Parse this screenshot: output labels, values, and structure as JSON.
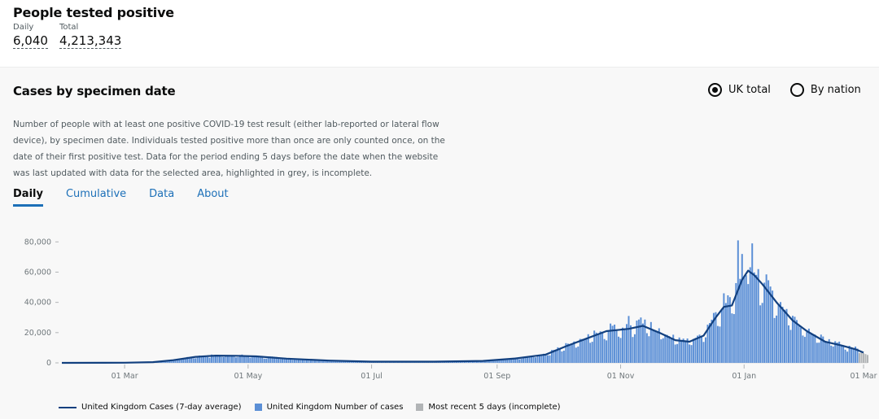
{
  "headline": {
    "title": "People tested positive",
    "daily_label": "Daily",
    "daily_value": "6,040",
    "total_label": "Total",
    "total_value": "4,213,343"
  },
  "card": {
    "title": "Cases by specimen date",
    "radio_uk": "UK total",
    "radio_nation": "By nation",
    "selected": "UK total",
    "description": "Number of people with at least one positive COVID-19 test result (either lab-reported or lateral flow device), by specimen date. Individuals tested positive more than once are only counted once, on the date of their first positive test. Data for the period ending 5 days before the date when the website was last updated with data for the selected area, highlighted in grey, is incomplete.",
    "tabs": [
      "Daily",
      "Cumulative",
      "Data",
      "About"
    ],
    "active_tab": "Daily"
  },
  "colors": {
    "bar": "#5b8fd6",
    "line": "#12407f",
    "incomplete": "#b1b4b6",
    "link": "#1d70b8"
  },
  "chart_data": {
    "type": "bar",
    "ylim": [
      0,
      85000
    ],
    "y_ticks": [
      0,
      20000,
      40000,
      60000,
      80000
    ],
    "y_tick_labels": [
      "0",
      "20,000",
      "40,000",
      "60,000",
      "80,000"
    ],
    "x_range": [
      "2020-01-30",
      "2021-03-03"
    ],
    "x_ticks": [
      "2020-03-01",
      "2020-05-01",
      "2020-07-01",
      "2020-09-01",
      "2020-11-01",
      "2021-01-01",
      "2021-03-01"
    ],
    "x_tick_labels": [
      "01 Mar",
      "01 May",
      "01 Jul",
      "01 Sep",
      "01 Nov",
      "01 Jan",
      "01 Mar"
    ],
    "series": [
      {
        "name": "United Kingdom Cases (7-day average)",
        "type": "line",
        "points": [
          [
            "2020-01-30",
            0
          ],
          [
            "2020-03-01",
            100
          ],
          [
            "2020-03-15",
            500
          ],
          [
            "2020-03-25",
            1800
          ],
          [
            "2020-04-05",
            4000
          ],
          [
            "2020-04-15",
            4800
          ],
          [
            "2020-04-25",
            4700
          ],
          [
            "2020-05-05",
            4300
          ],
          [
            "2020-05-20",
            2800
          ],
          [
            "2020-06-10",
            1500
          ],
          [
            "2020-07-01",
            800
          ],
          [
            "2020-08-01",
            800
          ],
          [
            "2020-08-25",
            1300
          ],
          [
            "2020-09-10",
            2900
          ],
          [
            "2020-09-25",
            5500
          ],
          [
            "2020-10-05",
            11000
          ],
          [
            "2020-10-15",
            16000
          ],
          [
            "2020-10-25",
            21000
          ],
          [
            "2020-11-05",
            22500
          ],
          [
            "2020-11-12",
            24500
          ],
          [
            "2020-11-20",
            20000
          ],
          [
            "2020-11-28",
            15000
          ],
          [
            "2020-12-05",
            14000
          ],
          [
            "2020-12-12",
            18000
          ],
          [
            "2020-12-18",
            30000
          ],
          [
            "2020-12-22",
            37000
          ],
          [
            "2020-12-26",
            38000
          ],
          [
            "2020-12-31",
            55000
          ],
          [
            "2021-01-03",
            61000
          ],
          [
            "2021-01-06",
            58000
          ],
          [
            "2021-01-10",
            52000
          ],
          [
            "2021-01-17",
            40000
          ],
          [
            "2021-01-25",
            28000
          ],
          [
            "2021-02-01",
            21000
          ],
          [
            "2021-02-10",
            14000
          ],
          [
            "2021-02-18",
            11500
          ],
          [
            "2021-02-25",
            9000
          ],
          [
            "2021-03-01",
            6800
          ]
        ]
      },
      {
        "name": "United Kingdom Number of cases",
        "type": "bar",
        "points": [
          [
            "2020-10-20",
            20000
          ],
          [
            "2020-10-27",
            26000
          ],
          [
            "2020-11-05",
            31000
          ],
          [
            "2020-11-11",
            30000
          ],
          [
            "2020-11-16",
            27000
          ],
          [
            "2020-12-17",
            33000
          ],
          [
            "2020-12-22",
            46000
          ],
          [
            "2020-12-29",
            81000
          ],
          [
            "2020-12-31",
            72000
          ],
          [
            "2021-01-02",
            58000
          ],
          [
            "2021-01-05",
            79000
          ],
          [
            "2021-01-08",
            62000
          ]
        ]
      },
      {
        "name": "Most recent 5 days (incomplete)",
        "type": "bar",
        "points": [
          [
            "2021-02-27",
            6500
          ],
          [
            "2021-02-28",
            7000
          ],
          [
            "2021-03-01",
            6400
          ],
          [
            "2021-03-02",
            5800
          ],
          [
            "2021-03-03",
            5200
          ]
        ]
      }
    ],
    "legend_position": "bottom-left",
    "grid": false
  }
}
